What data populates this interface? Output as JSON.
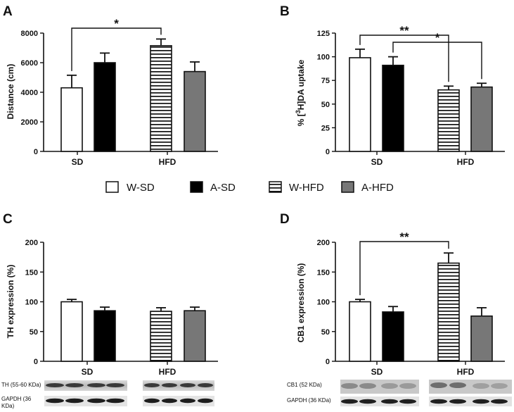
{
  "legend": [
    {
      "name": "W-SD",
      "style": "white"
    },
    {
      "name": "A-SD",
      "style": "black"
    },
    {
      "name": "W-HFD",
      "style": "hstripe"
    },
    {
      "name": "A-HFD",
      "style": "gray"
    }
  ],
  "colors": {
    "axis": "#111111",
    "black_bar": "#000000",
    "gray_bar": "#777777",
    "stripe": "#111111"
  },
  "chart_data": [
    {
      "type": "bar",
      "panel_label": "A",
      "categories": [
        "SD",
        "HFD"
      ],
      "series": [
        {
          "name": "W-SD",
          "values": [
            4300,
            null
          ],
          "errors": [
            850,
            null
          ]
        },
        {
          "name": "A-SD",
          "values": [
            6000,
            null
          ],
          "errors": [
            650,
            null
          ]
        },
        {
          "name": "W-HFD",
          "values": [
            null,
            7150
          ],
          "errors": [
            null,
            450
          ]
        },
        {
          "name": "A-HFD",
          "values": [
            null,
            5400
          ],
          "errors": [
            null,
            650
          ]
        }
      ],
      "ylabel": "Distance (cm)",
      "ylim": [
        0,
        8000
      ],
      "yticks": [
        0,
        2000,
        4000,
        6000,
        8000
      ],
      "annotations": [
        {
          "text": "*",
          "from": "W-SD",
          "to": "W-HFD"
        }
      ]
    },
    {
      "type": "bar",
      "panel_label": "B",
      "categories": [
        "SD",
        "HFD"
      ],
      "series": [
        {
          "name": "W-SD",
          "values": [
            99,
            null
          ],
          "errors": [
            9,
            null
          ]
        },
        {
          "name": "A-SD",
          "values": [
            91,
            null
          ],
          "errors": [
            9,
            null
          ]
        },
        {
          "name": "W-HFD",
          "values": [
            null,
            65
          ],
          "errors": [
            null,
            4
          ]
        },
        {
          "name": "A-HFD",
          "values": [
            null,
            68
          ],
          "errors": [
            null,
            4
          ]
        }
      ],
      "ylabel_parts": [
        "% [",
        "3",
        "H]DA uptake"
      ],
      "ylim": [
        0,
        125
      ],
      "yticks": [
        0,
        25,
        50,
        75,
        100,
        125
      ],
      "annotations": [
        {
          "text": "**",
          "from": "W-SD",
          "to": "W-HFD"
        },
        {
          "text": "*",
          "from": "A-SD",
          "to": "A-HFD"
        }
      ]
    },
    {
      "type": "bar",
      "panel_label": "C",
      "categories": [
        "SD",
        "HFD"
      ],
      "series": [
        {
          "name": "W-SD",
          "values": [
            100,
            null
          ],
          "errors": [
            4,
            null
          ]
        },
        {
          "name": "A-SD",
          "values": [
            85,
            null
          ],
          "errors": [
            6,
            null
          ]
        },
        {
          "name": "W-HFD",
          "values": [
            null,
            84
          ],
          "errors": [
            null,
            6
          ]
        },
        {
          "name": "A-HFD",
          "values": [
            null,
            85
          ],
          "errors": [
            null,
            6
          ]
        }
      ],
      "ylabel": "TH expression (%)",
      "ylim": [
        0,
        200
      ],
      "yticks": [
        0,
        50,
        100,
        150,
        200
      ],
      "annotations": [],
      "blot_labels": [
        "TH (55-60 KDa)",
        "GAPDH (36 KDa)"
      ]
    },
    {
      "type": "bar",
      "panel_label": "D",
      "categories": [
        "SD",
        "HFD"
      ],
      "series": [
        {
          "name": "W-SD",
          "values": [
            100,
            null
          ],
          "errors": [
            4,
            null
          ]
        },
        {
          "name": "A-SD",
          "values": [
            83,
            null
          ],
          "errors": [
            9,
            null
          ]
        },
        {
          "name": "W-HFD",
          "values": [
            null,
            165
          ],
          "errors": [
            null,
            17
          ]
        },
        {
          "name": "A-HFD",
          "values": [
            null,
            76
          ],
          "errors": [
            null,
            14
          ]
        }
      ],
      "ylabel": "CB1 expression (%)",
      "ylim": [
        0,
        200
      ],
      "yticks": [
        0,
        50,
        100,
        150,
        200
      ],
      "annotations": [
        {
          "text": "**",
          "from": "W-SD",
          "to": "W-HFD"
        }
      ],
      "blot_labels": [
        "CB1 (52 KDa)",
        "GAPDH (36 KDa)"
      ]
    }
  ]
}
